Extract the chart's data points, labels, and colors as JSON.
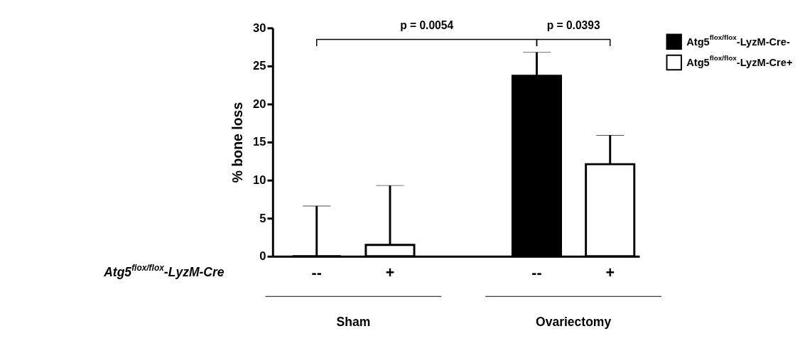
{
  "chart_data": {
    "type": "bar",
    "ylabel": "% bone loss",
    "xlabel": "Atg5$^{flox/flox}$-LyzM-Cre",
    "categories": [
      "Sham",
      "Ovariectomy"
    ],
    "series": [
      {
        "name": "Atg5$^{flox/flox}$-LyzM-Cre-",
        "color": "#000000",
        "values": [
          0,
          23.7
        ],
        "errors": [
          [
            0,
            6.6
          ],
          [
            23.7,
            26.8
          ]
        ]
      },
      {
        "name": "Atg5$^{flox/flox}$-LyzM-Cre+",
        "color": "#ffffff",
        "values": [
          1.5,
          12.1
        ],
        "errors": [
          [
            1.5,
            9.3
          ],
          [
            12.1,
            15.9
          ]
        ]
      }
    ],
    "ylim": [
      0,
      30
    ],
    "yticks": [
      0,
      5,
      10,
      15,
      20,
      25,
      30
    ],
    "grid": false,
    "legend": "top right",
    "annotations": [
      "p = 0.0054",
      "p = 0.0393",
      "--",
      "+",
      "--",
      "+"
    ]
  }
}
